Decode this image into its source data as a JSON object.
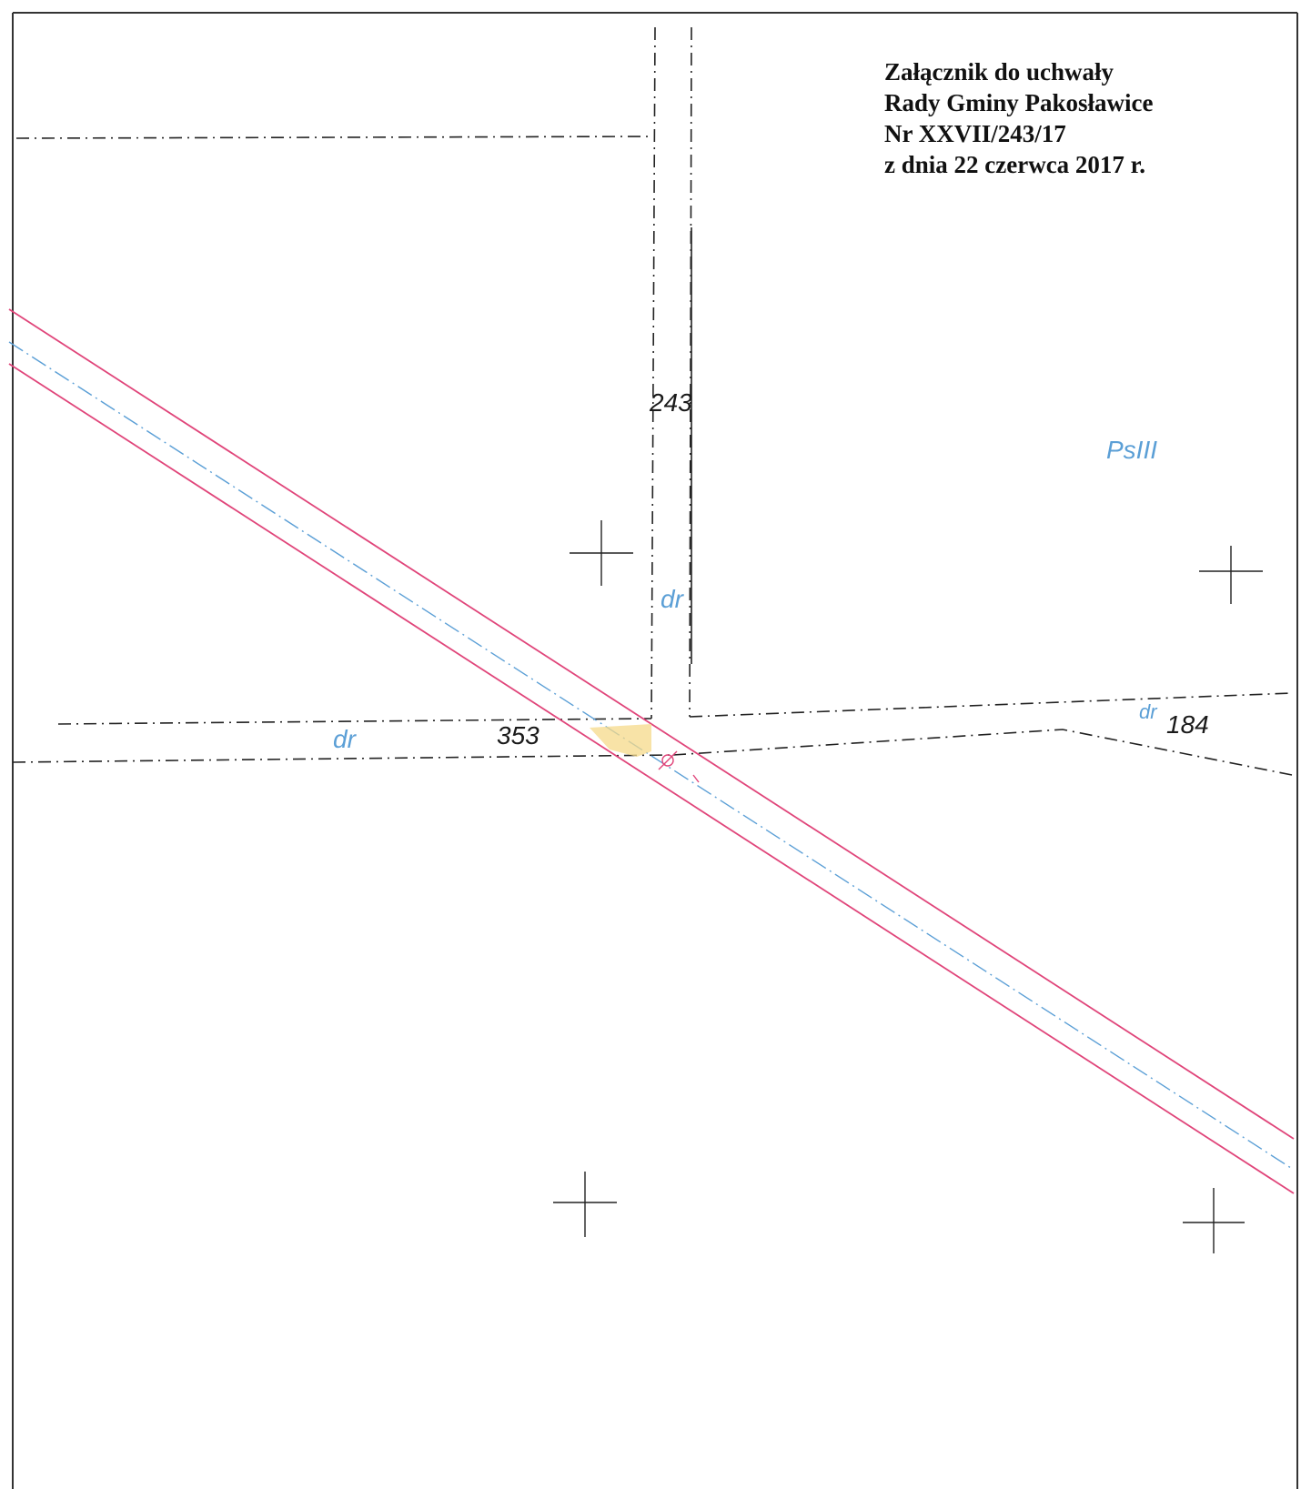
{
  "annotation": {
    "line1": "Załącznik do uchwały",
    "line2": "Rady Gminy Pakosławice",
    "line3": "Nr XXVII/243/17",
    "line4": "z dnia 22 czerwca 2017 r."
  },
  "map": {
    "parcel_labels": {
      "north": "243",
      "west": "353",
      "east": "184"
    },
    "land_use_labels": {
      "road_vertical": "dr",
      "road_west": "dr",
      "road_east": "dr",
      "pasture_class": "PsIII"
    },
    "colors": {
      "boundary": "#222222",
      "land_use_text": "#5b9fd6",
      "pipeline_corridor": "#e0457a",
      "highlight": "#f5d98a"
    }
  }
}
